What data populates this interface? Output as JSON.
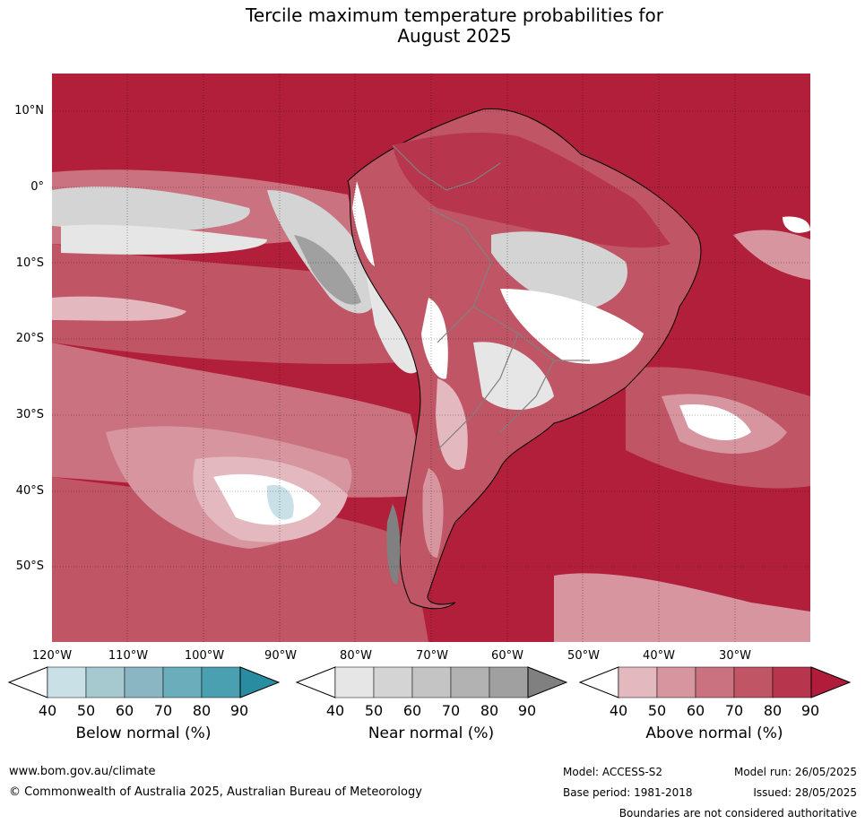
{
  "title_line1": "Tercile maximum temperature probabilities for",
  "title_line2": "August 2025",
  "map": {
    "lat_labels": [
      "10°N",
      "0°",
      "10°S",
      "20°S",
      "30°S",
      "40°S",
      "50°S"
    ],
    "lon_labels": [
      "120°W",
      "110°W",
      "100°W",
      "90°W",
      "80°W",
      "70°W",
      "60°W",
      "50°W",
      "40°W",
      "30°W"
    ],
    "ocean_color": "#b21f3b"
  },
  "colorbars": [
    {
      "name": "below",
      "title": "Below normal (%)",
      "ticks": [
        "40",
        "50",
        "60",
        "70",
        "80",
        "90"
      ],
      "colors": [
        "#ffffff",
        "#c8e0e6",
        "#a6c8cf",
        "#89b6c2",
        "#6badbb",
        "#4a9fb0",
        "#2a8ca1"
      ]
    },
    {
      "name": "near",
      "title": "Near normal (%)",
      "ticks": [
        "40",
        "50",
        "60",
        "70",
        "80",
        "90"
      ],
      "colors": [
        "#ffffff",
        "#e6e6e6",
        "#d4d4d4",
        "#c4c4c4",
        "#b2b2b2",
        "#a0a0a0",
        "#808080"
      ]
    },
    {
      "name": "above",
      "title": "Above normal (%)",
      "ticks": [
        "40",
        "50",
        "60",
        "70",
        "80",
        "90"
      ],
      "colors": [
        "#ffffff",
        "#e3b8be",
        "#d6959f",
        "#ca727f",
        "#c05566",
        "#b7354d",
        "#b01c39"
      ]
    }
  ],
  "footer": {
    "url": "www.bom.gov.au/climate",
    "copyright": "© Commonwealth of Australia 2025, Australian Bureau of Meteorology",
    "model": "Model: ACCESS-S2",
    "model_run": "Model run: 26/05/2025",
    "base_period": "Base period: 1981-2018",
    "issued": "Issued: 28/05/2025",
    "boundaries_note": "Boundaries are not considered authoritative"
  }
}
